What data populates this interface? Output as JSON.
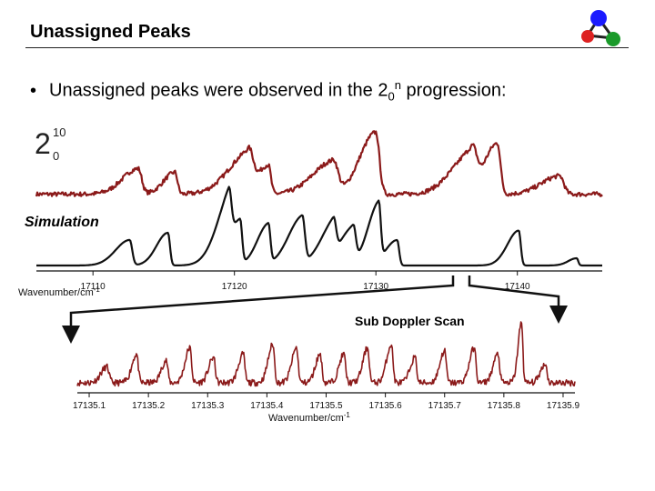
{
  "slide": {
    "title": "Unassigned Peaks",
    "bullet_char": "•",
    "bullet_prefix": "Unassigned peaks were observed in the 2",
    "bullet_sub": "0",
    "bullet_sup": "n",
    "bullet_suffix": " progression:",
    "band_main": "2",
    "band_sup": "10",
    "band_sub": "0",
    "simulation_label": "Simulation",
    "subdoppler_label": "Sub Doppler Scan"
  },
  "colors": {
    "experiment": "#8b1a1a",
    "simulation": "#111111",
    "logo_blue": "#1a1aff",
    "logo_red": "#dd2222",
    "logo_green": "#1a9a2a"
  },
  "chart_data": [
    {
      "type": "line",
      "title": "",
      "xlabel": "Wavenumber/cm-1",
      "xlabel_main": "Wavenumber/cm",
      "xlabel_sup": "-1",
      "ylabel": "",
      "xlim": [
        17106,
        17146
      ],
      "x_ticks": [
        17110,
        17120,
        17130,
        17140
      ],
      "grid": false,
      "series": [
        {
          "role": "experiment",
          "baseline": 0.08,
          "peaks": [
            {
              "x": 17113.2,
              "height": 0.35,
              "width": 0.7
            },
            {
              "x": 17115.8,
              "height": 0.3,
              "width": 0.5
            },
            {
              "x": 17121.0,
              "height": 0.55,
              "width": 0.9
            },
            {
              "x": 17122.4,
              "height": 0.4,
              "width": 0.5
            },
            {
              "x": 17127.0,
              "height": 0.45,
              "width": 0.9
            },
            {
              "x": 17130.0,
              "height": 0.85,
              "width": 0.7
            },
            {
              "x": 17136.8,
              "height": 0.55,
              "width": 0.9
            },
            {
              "x": 17138.6,
              "height": 0.7,
              "width": 0.6
            },
            {
              "x": 17143.0,
              "height": 0.25,
              "width": 0.8
            }
          ]
        },
        {
          "role": "simulation",
          "baseline": 0.05,
          "peaks": [
            {
              "x": 17112.6,
              "height": 0.35,
              "width": 0.5
            },
            {
              "x": 17115.3,
              "height": 0.45,
              "width": 0.4
            },
            {
              "x": 17119.6,
              "height": 0.7,
              "width": 0.5
            },
            {
              "x": 17120.4,
              "height": 0.62,
              "width": 0.4
            },
            {
              "x": 17122.4,
              "height": 0.55,
              "width": 0.4
            },
            {
              "x": 17124.8,
              "height": 0.65,
              "width": 0.5
            },
            {
              "x": 17127.0,
              "height": 0.48,
              "width": 0.5
            },
            {
              "x": 17128.4,
              "height": 0.5,
              "width": 0.5
            },
            {
              "x": 17130.2,
              "height": 0.8,
              "width": 0.4
            },
            {
              "x": 17131.5,
              "height": 0.35,
              "width": 0.4
            },
            {
              "x": 17140.1,
              "height": 0.48,
              "width": 0.4
            },
            {
              "x": 17144.2,
              "height": 0.1,
              "width": 0.3
            }
          ]
        }
      ]
    },
    {
      "type": "line",
      "title": "",
      "xlabel": "Wavenumber/cm-1",
      "xlabel_main": "Wavenumber/cm",
      "xlabel_sup": "-1",
      "ylabel": "",
      "xlim": [
        17135.08,
        17135.92
      ],
      "x_ticks": [
        17135.1,
        17135.2,
        17135.3,
        17135.4,
        17135.5,
        17135.6,
        17135.7,
        17135.8,
        17135.9
      ],
      "grid": false,
      "series": [
        {
          "role": "sub-doppler",
          "baseline": 0.1,
          "peaks": [
            {
              "x": 17135.13,
              "height": 0.25,
              "width": 0.01
            },
            {
              "x": 17135.18,
              "height": 0.45,
              "width": 0.008
            },
            {
              "x": 17135.23,
              "height": 0.35,
              "width": 0.008
            },
            {
              "x": 17135.27,
              "height": 0.55,
              "width": 0.008
            },
            {
              "x": 17135.31,
              "height": 0.4,
              "width": 0.008
            },
            {
              "x": 17135.36,
              "height": 0.45,
              "width": 0.008
            },
            {
              "x": 17135.41,
              "height": 0.6,
              "width": 0.008
            },
            {
              "x": 17135.45,
              "height": 0.55,
              "width": 0.008
            },
            {
              "x": 17135.49,
              "height": 0.45,
              "width": 0.008
            },
            {
              "x": 17135.53,
              "height": 0.45,
              "width": 0.008
            },
            {
              "x": 17135.57,
              "height": 0.55,
              "width": 0.008
            },
            {
              "x": 17135.61,
              "height": 0.6,
              "width": 0.008
            },
            {
              "x": 17135.65,
              "height": 0.4,
              "width": 0.008
            },
            {
              "x": 17135.7,
              "height": 0.5,
              "width": 0.008
            },
            {
              "x": 17135.75,
              "height": 0.55,
              "width": 0.008
            },
            {
              "x": 17135.79,
              "height": 0.45,
              "width": 0.008
            },
            {
              "x": 17135.83,
              "height": 0.95,
              "width": 0.006
            },
            {
              "x": 17135.87,
              "height": 0.3,
              "width": 0.008
            }
          ]
        }
      ]
    }
  ]
}
